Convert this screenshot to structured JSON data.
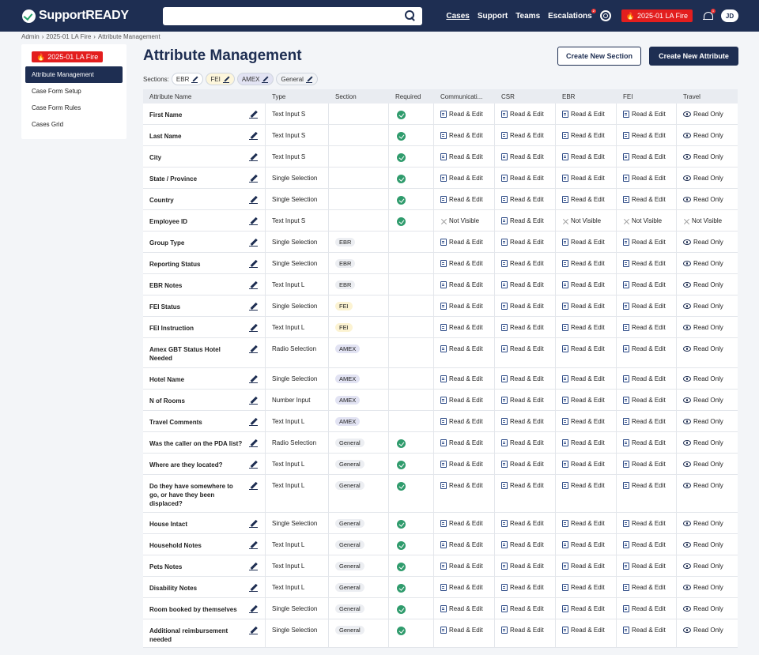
{
  "app": {
    "brand": "SupportREADY",
    "search_placeholder": ""
  },
  "nav": {
    "cases": "Cases",
    "support": "Support",
    "teams": "Teams",
    "escalations": "Escalations",
    "escalations_badge": "2",
    "incident": "2025-01 LA Fire",
    "bell_badge": "1",
    "avatar": "JD"
  },
  "breadcrumb": [
    "Admin",
    "2025-01 LA Fire",
    "Attribute Management"
  ],
  "sidebar": {
    "incident": "2025-01 LA Fire",
    "items": [
      "Attribute Management",
      "Case Form Setup",
      "Case Form Rules",
      "Cases Grid"
    ]
  },
  "page": {
    "title": "Attribute Management",
    "create_section": "Create New Section",
    "create_attribute": "Create New Attribute"
  },
  "sections": {
    "label": "Sections:",
    "chips": [
      "EBR",
      "FEI",
      "AMEX",
      "General"
    ]
  },
  "columns": [
    "Attribute Name",
    "Type",
    "Section",
    "Required",
    "Communicati...",
    "CSR",
    "EBR",
    "FEI",
    "Travel"
  ],
  "perm_labels": {
    "RE": "Read & Edit",
    "RO": "Read Only",
    "NV": "Not Visible"
  },
  "rows": [
    {
      "name": "First Name",
      "type": "Text Input S",
      "section": "",
      "required": true,
      "perms": [
        "RE",
        "RE",
        "RE",
        "RE",
        "RO"
      ]
    },
    {
      "name": "Last Name",
      "type": "Text Input S",
      "section": "",
      "required": true,
      "perms": [
        "RE",
        "RE",
        "RE",
        "RE",
        "RO"
      ]
    },
    {
      "name": "City",
      "type": "Text Input S",
      "section": "",
      "required": true,
      "perms": [
        "RE",
        "RE",
        "RE",
        "RE",
        "RO"
      ]
    },
    {
      "name": "State / Province",
      "type": "Single Selection",
      "section": "",
      "required": true,
      "perms": [
        "RE",
        "RE",
        "RE",
        "RE",
        "RO"
      ]
    },
    {
      "name": "Country",
      "type": "Single Selection",
      "section": "",
      "required": true,
      "perms": [
        "RE",
        "RE",
        "RE",
        "RE",
        "RO"
      ]
    },
    {
      "name": "Employee ID",
      "type": "Text Input S",
      "section": "",
      "required": true,
      "perms": [
        "NV",
        "RE",
        "NV",
        "NV",
        "NV"
      ]
    },
    {
      "name": "Group Type",
      "type": "Single Selection",
      "section": "EBR",
      "required": false,
      "perms": [
        "RE",
        "RE",
        "RE",
        "RE",
        "RO"
      ]
    },
    {
      "name": "Reporting Status",
      "type": "Single Selection",
      "section": "EBR",
      "required": false,
      "perms": [
        "RE",
        "RE",
        "RE",
        "RE",
        "RO"
      ]
    },
    {
      "name": "EBR Notes",
      "type": "Text Input L",
      "section": "EBR",
      "required": false,
      "perms": [
        "RE",
        "RE",
        "RE",
        "RE",
        "RO"
      ]
    },
    {
      "name": "FEI Status",
      "type": "Single Selection",
      "section": "FEI",
      "required": false,
      "perms": [
        "RE",
        "RE",
        "RE",
        "RE",
        "RO"
      ]
    },
    {
      "name": "FEI Instruction",
      "type": "Text Input L",
      "section": "FEI",
      "required": false,
      "perms": [
        "RE",
        "RE",
        "RE",
        "RE",
        "RO"
      ]
    },
    {
      "name": "Amex GBT Status Hotel Needed",
      "type": "Radio Selection",
      "section": "AMEX",
      "required": false,
      "perms": [
        "RE",
        "RE",
        "RE",
        "RE",
        "RO"
      ]
    },
    {
      "name": "Hotel Name",
      "type": "Single Selection",
      "section": "AMEX",
      "required": false,
      "perms": [
        "RE",
        "RE",
        "RE",
        "RE",
        "RO"
      ]
    },
    {
      "name": "N of Rooms",
      "type": "Number Input",
      "section": "AMEX",
      "required": false,
      "perms": [
        "RE",
        "RE",
        "RE",
        "RE",
        "RO"
      ]
    },
    {
      "name": "Travel Comments",
      "type": "Text Input L",
      "section": "AMEX",
      "required": false,
      "perms": [
        "RE",
        "RE",
        "RE",
        "RE",
        "RO"
      ]
    },
    {
      "name": "Was the caller on the PDA list?",
      "type": "Radio Selection",
      "section": "General",
      "required": true,
      "perms": [
        "RE",
        "RE",
        "RE",
        "RE",
        "RO"
      ]
    },
    {
      "name": "Where are they located?",
      "type": "Text Input L",
      "section": "General",
      "required": true,
      "perms": [
        "RE",
        "RE",
        "RE",
        "RE",
        "RO"
      ]
    },
    {
      "name": "Do they have somewhere to go, or have they been displaced?",
      "type": "Text Input L",
      "section": "General",
      "required": true,
      "perms": [
        "RE",
        "RE",
        "RE",
        "RE",
        "RO"
      ]
    },
    {
      "name": "House Intact",
      "type": "Single Selection",
      "section": "General",
      "required": true,
      "perms": [
        "RE",
        "RE",
        "RE",
        "RE",
        "RO"
      ]
    },
    {
      "name": "Household Notes",
      "type": "Text Input L",
      "section": "General",
      "required": true,
      "perms": [
        "RE",
        "RE",
        "RE",
        "RE",
        "RO"
      ]
    },
    {
      "name": "Pets Notes",
      "type": "Text Input L",
      "section": "General",
      "required": true,
      "perms": [
        "RE",
        "RE",
        "RE",
        "RE",
        "RO"
      ]
    },
    {
      "name": "Disability Notes",
      "type": "Text Input L",
      "section": "General",
      "required": true,
      "perms": [
        "RE",
        "RE",
        "RE",
        "RE",
        "RO"
      ]
    },
    {
      "name": "Room booked by themselves",
      "type": "Single Selection",
      "section": "General",
      "required": true,
      "perms": [
        "RE",
        "RE",
        "RE",
        "RE",
        "RO"
      ]
    },
    {
      "name": "Additional reimbursement needed",
      "type": "Single Selection",
      "section": "General",
      "required": true,
      "perms": [
        "RE",
        "RE",
        "RE",
        "RE",
        "RO"
      ]
    }
  ]
}
